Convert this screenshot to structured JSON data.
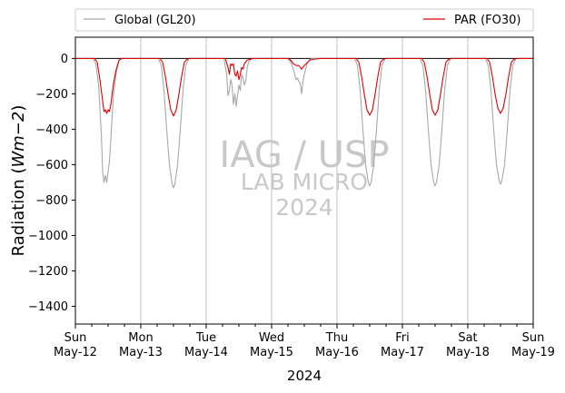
{
  "chart_data": {
    "type": "line",
    "x_unit": "hours since axis start",
    "xlim": [
      0,
      168
    ],
    "ylim": [
      -1500,
      120
    ],
    "ylabel": "Radiation ($Wm−2$)",
    "ylabel_prefix": "Radiation (",
    "ylabel_math": "Wm−2",
    "ylabel_suffix": ")",
    "xlabel": "2024",
    "zero_line": 0,
    "y_ticks": [
      0,
      -200,
      -400,
      -600,
      -800,
      -1000,
      -1200,
      -1400
    ],
    "y_tick_labels": [
      "0",
      "−200",
      "−400",
      "−600",
      "−800",
      "−1000",
      "−1200",
      "−1400"
    ],
    "x_major_ticks": [
      0,
      24,
      48,
      72,
      96,
      120,
      144,
      168
    ],
    "x_minor_step": 6,
    "x_tick_labels": [
      {
        "day": "Sun",
        "date": "May-12"
      },
      {
        "day": "Mon",
        "date": "May-13"
      },
      {
        "day": "Tue",
        "date": "May-14"
      },
      {
        "day": "Wed",
        "date": "May-15"
      },
      {
        "day": "Thu",
        "date": "May-16"
      },
      {
        "day": "Fri",
        "date": "May-17"
      },
      {
        "day": "Sat",
        "date": "May-18"
      },
      {
        "day": "Sun",
        "date": "May-19"
      }
    ],
    "grid": "vertical-major",
    "legend_position": "top-outside",
    "watermark": {
      "line1": "IAG / USP",
      "line2": "LAB MICRO",
      "line3": "2024"
    },
    "series": [
      {
        "name": "Global (GL20)",
        "color": "#a8a8a8",
        "x": [
          0,
          6.5,
          7.5,
          8.5,
          9.5,
          10,
          10.5,
          11,
          11.5,
          12,
          12.5,
          13,
          13.5,
          14,
          15,
          16,
          17,
          18,
          30.5,
          31.5,
          32.5,
          33.5,
          34.5,
          35.5,
          36,
          36.5,
          37.5,
          38.5,
          39.5,
          40.5,
          41.5,
          42,
          54.5,
          55.5,
          56,
          56.5,
          57,
          57.5,
          58,
          58.5,
          59,
          59.5,
          60,
          60.5,
          61,
          61.5,
          62,
          62.5,
          63,
          63.5,
          64.5,
          65.5,
          66,
          78,
          79,
          80,
          80.5,
          81,
          81.5,
          82,
          82.5,
          83,
          83.5,
          84,
          84.5,
          85,
          86,
          87,
          90,
          102.5,
          103.5,
          104.5,
          105.5,
          106.5,
          107.5,
          108,
          108.5,
          109.5,
          110.5,
          111.5,
          112.5,
          113.5,
          114,
          126.5,
          127.5,
          128.5,
          129.5,
          130.5,
          131.5,
          132,
          132.5,
          133.5,
          134.5,
          135.5,
          136.5,
          137.5,
          138,
          150.5,
          151.5,
          152.5,
          153.5,
          154.5,
          155.5,
          156,
          156.5,
          157.5,
          158.5,
          159.5,
          160.5,
          161.5,
          162,
          168
        ],
        "values": [
          0,
          0,
          -30,
          -150,
          -420,
          -640,
          -700,
          -660,
          -700,
          -640,
          -580,
          -460,
          -320,
          -200,
          -80,
          -10,
          0,
          0,
          0,
          -40,
          -180,
          -400,
          -600,
          -710,
          -730,
          -710,
          -600,
          -400,
          -180,
          -40,
          -5,
          0,
          0,
          -90,
          -210,
          -180,
          -120,
          -150,
          -260,
          -200,
          -270,
          -210,
          -150,
          -180,
          -90,
          -110,
          -150,
          -130,
          -60,
          -20,
          -5,
          0,
          0,
          0,
          -20,
          -60,
          -90,
          -120,
          -110,
          -130,
          -140,
          -200,
          -130,
          -90,
          -60,
          -30,
          -5,
          0,
          0,
          0,
          -40,
          -180,
          -400,
          -600,
          -700,
          -720,
          -700,
          -600,
          -400,
          -180,
          -40,
          -5,
          0,
          0,
          -40,
          -180,
          -400,
          -600,
          -700,
          -720,
          -700,
          -600,
          -400,
          -180,
          -40,
          -5,
          0,
          0,
          -40,
          -180,
          -400,
          -600,
          -690,
          -710,
          -690,
          -600,
          -400,
          -180,
          -40,
          -5,
          0,
          0
        ]
      },
      {
        "name": "PAR (FO30)",
        "color": "#e00000",
        "x": [
          0,
          7,
          8,
          9,
          10,
          10.5,
          11,
          11.5,
          12,
          12.5,
          13,
          13.5,
          14,
          15,
          16,
          17,
          18,
          31,
          32,
          33,
          34,
          35,
          36,
          37,
          38,
          39,
          40,
          41,
          42,
          55,
          56,
          56.5,
          57,
          57.5,
          58,
          58.5,
          59,
          59.5,
          60,
          60.5,
          61,
          61.5,
          62,
          63,
          64,
          65,
          66,
          78,
          79,
          80,
          81,
          82,
          83,
          84,
          85,
          86,
          87,
          90,
          103,
          104,
          105,
          106,
          107,
          108,
          109,
          110,
          111,
          112,
          113,
          114,
          127,
          128,
          129,
          130,
          131,
          132,
          133,
          134,
          135,
          136,
          137,
          138,
          151,
          152,
          153,
          154,
          155,
          156,
          157,
          158,
          159,
          160,
          161,
          162,
          168
        ],
        "values": [
          0,
          0,
          -20,
          -120,
          -240,
          -300,
          -290,
          -310,
          -290,
          -300,
          -260,
          -200,
          -140,
          -60,
          -10,
          0,
          0,
          0,
          -20,
          -100,
          -200,
          -290,
          -325,
          -290,
          -200,
          -100,
          -20,
          -5,
          0,
          0,
          -50,
          -90,
          -30,
          -40,
          -30,
          -90,
          -100,
          -70,
          -120,
          -90,
          -50,
          -60,
          -30,
          -10,
          -5,
          0,
          0,
          0,
          -10,
          -30,
          -40,
          -40,
          -60,
          -40,
          -25,
          -10,
          -5,
          0,
          0,
          -20,
          -100,
          -200,
          -290,
          -320,
          -290,
          -200,
          -100,
          -20,
          -5,
          0,
          0,
          -20,
          -100,
          -200,
          -290,
          -320,
          -290,
          -200,
          -100,
          -20,
          -5,
          0,
          0,
          -20,
          -100,
          -200,
          -280,
          -310,
          -280,
          -200,
          -100,
          -20,
          -5,
          0,
          0
        ]
      }
    ]
  }
}
